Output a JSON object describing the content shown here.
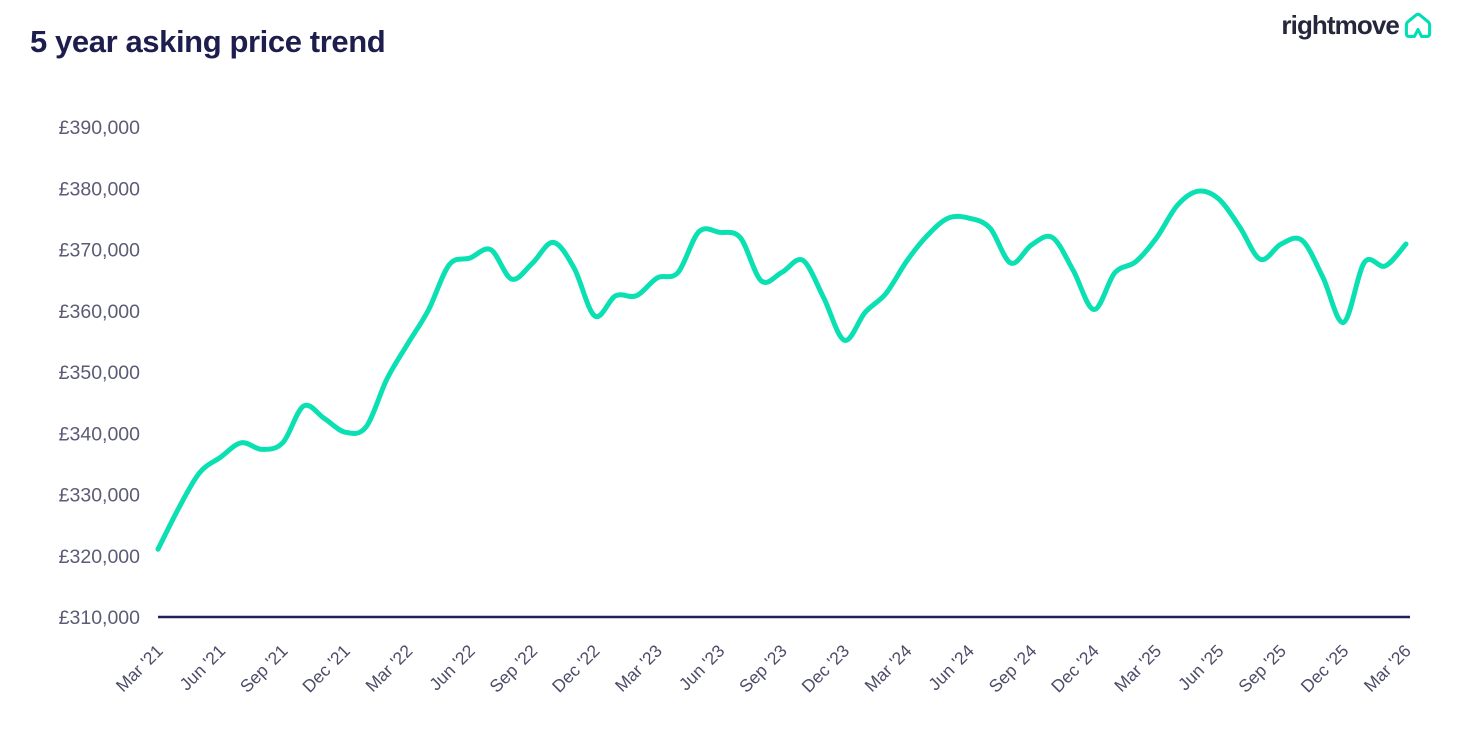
{
  "header": {
    "title": "5 year asking price trend"
  },
  "logo": {
    "text": "rightmove",
    "icon": "rightmove-house-icon",
    "icon_color": "#00deb6",
    "text_color": "#26263c"
  },
  "colors": {
    "line": "#0be0b2",
    "axis_line": "#20205a",
    "title_text": "#1e1e4e",
    "y_label_text": "#5b5b76",
    "x_label_text": "#4c4c68",
    "background": "#ffffff"
  },
  "chart_data": {
    "type": "line",
    "title": "5 year asking price trend",
    "xlabel": "",
    "ylabel": "",
    "currency": "GBP",
    "grid": false,
    "legend": null,
    "ylim": [
      310000,
      390000
    ],
    "y_tick_values": [
      390000,
      380000,
      370000,
      360000,
      350000,
      340000,
      330000,
      320000,
      310000
    ],
    "y_tick_labels": [
      "£390,000",
      "£380,000",
      "£370,000",
      "£360,000",
      "£350,000",
      "£340,000",
      "£330,000",
      "£320,000",
      "£310,000"
    ],
    "x_tick_every": 3,
    "x_tick_labels": [
      "Mar '21",
      "Jun '21",
      "Sep '21",
      "Dec '21",
      "Mar '22",
      "Jun '22",
      "Sep '22",
      "Dec '22",
      "Mar '23",
      "Jun '23",
      "Sep '23",
      "Dec '23",
      "Mar '24",
      "Jun '24",
      "Sep '24",
      "Dec '24",
      "Mar '25",
      "Jun '25",
      "Sep '25",
      "Dec '25",
      "Mar '26"
    ],
    "x": [
      "Mar '21",
      "Apr '21",
      "May '21",
      "Jun '21",
      "Jul '21",
      "Aug '21",
      "Sep '21",
      "Oct '21",
      "Nov '21",
      "Dec '21",
      "Jan '22",
      "Feb '22",
      "Mar '22",
      "Apr '22",
      "May '22",
      "Jun '22",
      "Jul '22",
      "Aug '22",
      "Sep '22",
      "Oct '22",
      "Nov '22",
      "Dec '22",
      "Jan '23",
      "Feb '23",
      "Mar '23",
      "Apr '23",
      "May '23",
      "Jun '23",
      "Jul '23",
      "Aug '23",
      "Sep '23",
      "Oct '23",
      "Nov '23",
      "Dec '23",
      "Jan '24",
      "Feb '24",
      "Mar '24",
      "Apr '24",
      "May '24",
      "Jun '24",
      "Jul '24",
      "Aug '24",
      "Sep '24",
      "Oct '24",
      "Nov '24",
      "Dec '24",
      "Jan '25",
      "Feb '25",
      "Mar '25",
      "Apr '25",
      "May '25",
      "Jun '25",
      "Jul '25",
      "Aug '25",
      "Sep '25",
      "Oct '25",
      "Nov '25",
      "Dec '25",
      "Jan '26",
      "Feb '26",
      "Mar '26"
    ],
    "values": [
      321064,
      327797,
      333564,
      336073,
      338447,
      337371,
      338462,
      344445,
      342401,
      340167,
      341019,
      348804,
      354564,
      360101,
      367501,
      368614,
      369968,
      365173,
      367760,
      371158,
      366999,
      359137,
      362438,
      362452,
      365357,
      366247,
      372894,
      372812,
      371907,
      364895,
      366281,
      368231,
      362143,
      355177,
      359748,
      362839,
      368118,
      372324,
      375131,
      375110,
      373493,
      367785,
      370759,
      371958,
      366592,
      360197,
      366189,
      367994,
      371870,
      377182,
      379517,
      378240,
      373709,
      368400,
      370900,
      371500,
      365500,
      358100,
      367900,
      367300,
      370900
    ]
  }
}
